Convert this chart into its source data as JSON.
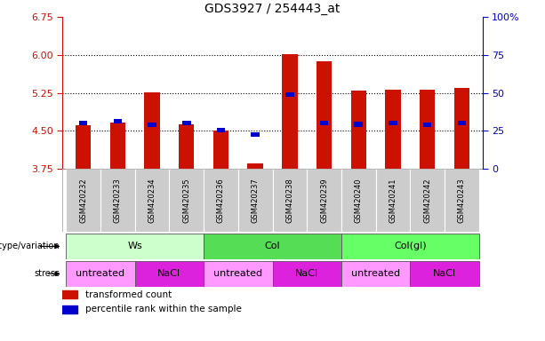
{
  "title": "GDS3927 / 254443_at",
  "samples": [
    "GSM420232",
    "GSM420233",
    "GSM420234",
    "GSM420235",
    "GSM420236",
    "GSM420237",
    "GSM420238",
    "GSM420239",
    "GSM420240",
    "GSM420241",
    "GSM420242",
    "GSM420243"
  ],
  "red_values": [
    4.62,
    4.67,
    5.27,
    4.63,
    4.5,
    3.85,
    6.02,
    5.88,
    5.29,
    5.32,
    5.31,
    5.35
  ],
  "blue_values": [
    4.65,
    4.69,
    4.62,
    4.65,
    4.52,
    4.42,
    5.22,
    4.65,
    4.63,
    4.65,
    4.62,
    4.65
  ],
  "ylim_left": [
    3.75,
    6.75
  ],
  "yticks_left": [
    3.75,
    4.5,
    5.25,
    6.0,
    6.75
  ],
  "yticks_right": [
    0,
    25,
    50,
    75,
    100
  ],
  "grid_lines": [
    4.5,
    5.25,
    6.0
  ],
  "bar_color_red": "#cc1100",
  "bar_color_blue": "#0000cc",
  "genotype_groups": [
    {
      "label": "Ws",
      "start": 0,
      "end": 3,
      "color": "#ccffcc"
    },
    {
      "label": "Col",
      "start": 4,
      "end": 7,
      "color": "#55dd55"
    },
    {
      "label": "Col(gl)",
      "start": 8,
      "end": 11,
      "color": "#66ff66"
    }
  ],
  "stress_groups": [
    {
      "label": "untreated",
      "start": 0,
      "end": 1,
      "color": "#ff99ff"
    },
    {
      "label": "NaCl",
      "start": 2,
      "end": 3,
      "color": "#dd22dd"
    },
    {
      "label": "untreated",
      "start": 4,
      "end": 5,
      "color": "#ff99ff"
    },
    {
      "label": "NaCl",
      "start": 6,
      "end": 7,
      "color": "#dd22dd"
    },
    {
      "label": "untreated",
      "start": 8,
      "end": 9,
      "color": "#ff99ff"
    },
    {
      "label": "NaCl",
      "start": 10,
      "end": 11,
      "color": "#dd22dd"
    }
  ],
  "legend_red": "transformed count",
  "legend_blue": "percentile rank within the sample",
  "bar_width": 0.45
}
